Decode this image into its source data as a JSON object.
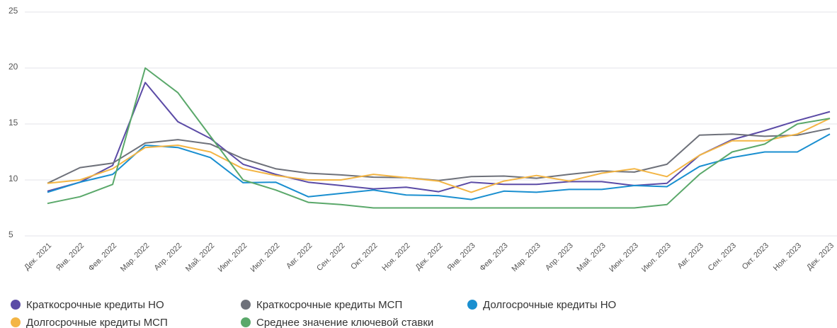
{
  "chart_data": {
    "type": "line",
    "categories": [
      "Дек. 2021",
      "Янв. 2022",
      "Фев. 2022",
      "Мар. 2022",
      "Апр. 2022",
      "Май. 2022",
      "Июн. 2022",
      "Июл. 2022",
      "Авг. 2022",
      "Сен. 2022",
      "Окт. 2022",
      "Ноя. 2022",
      "Дек. 2022",
      "Янв. 2023",
      "Фев. 2023",
      "Мар. 2023",
      "Апр. 2023",
      "Май. 2023",
      "Июн. 2023",
      "Июл. 2023",
      "Авг. 2023",
      "Сен. 2023",
      "Окт. 2023",
      "Ноя. 2023",
      "Дек. 2023"
    ],
    "series": [
      {
        "name": "Краткосрочные кредиты НО",
        "color": "#5b4ba6",
        "values": [
          9.0,
          9.8,
          11.3,
          18.7,
          15.2,
          13.7,
          11.4,
          10.5,
          9.8,
          9.5,
          9.2,
          9.35,
          8.95,
          9.8,
          9.6,
          9.6,
          9.85,
          9.85,
          9.5,
          9.7,
          12.2,
          13.6,
          14.4,
          15.3,
          16.1
        ]
      },
      {
        "name": "Краткосрочные кредиты МСП",
        "color": "#6e717a",
        "values": [
          9.7,
          11.1,
          11.5,
          13.3,
          13.6,
          13.2,
          11.9,
          11.0,
          10.6,
          10.45,
          10.25,
          10.2,
          9.95,
          10.3,
          10.35,
          10.15,
          10.5,
          10.8,
          10.7,
          11.4,
          14.0,
          14.1,
          13.9,
          14.0,
          14.6
        ]
      },
      {
        "name": "Долгосрочные кредиты НО",
        "color": "#1a8fd0",
        "values": [
          8.9,
          9.8,
          10.5,
          13.1,
          12.9,
          12.0,
          9.75,
          9.8,
          8.5,
          8.8,
          9.1,
          8.65,
          8.6,
          8.25,
          9.0,
          8.9,
          9.15,
          9.15,
          9.5,
          9.4,
          11.2,
          12.0,
          12.5,
          12.5,
          14.1
        ]
      },
      {
        "name": "Долгосрочные кредиты МСП",
        "color": "#f3b544",
        "values": [
          9.7,
          10.0,
          11.0,
          12.9,
          13.1,
          12.5,
          11.0,
          10.4,
          10.0,
          10.0,
          10.5,
          10.2,
          9.9,
          8.9,
          9.9,
          10.4,
          9.9,
          10.6,
          11.0,
          10.3,
          12.2,
          13.5,
          13.5,
          14.1,
          15.5
        ]
      },
      {
        "name": "Среднее значение ключевой ставки",
        "color": "#5aa86a",
        "values": [
          7.9,
          8.5,
          9.6,
          20.0,
          17.8,
          13.9,
          10.0,
          9.1,
          8.0,
          7.8,
          7.5,
          7.5,
          7.5,
          7.5,
          7.5,
          7.5,
          7.5,
          7.5,
          7.5,
          7.8,
          10.5,
          12.5,
          13.2,
          15.0,
          15.5
        ]
      }
    ],
    "ylim": [
      5,
      25
    ],
    "yticks": [
      5,
      10,
      15,
      20,
      25
    ],
    "grid": true
  }
}
